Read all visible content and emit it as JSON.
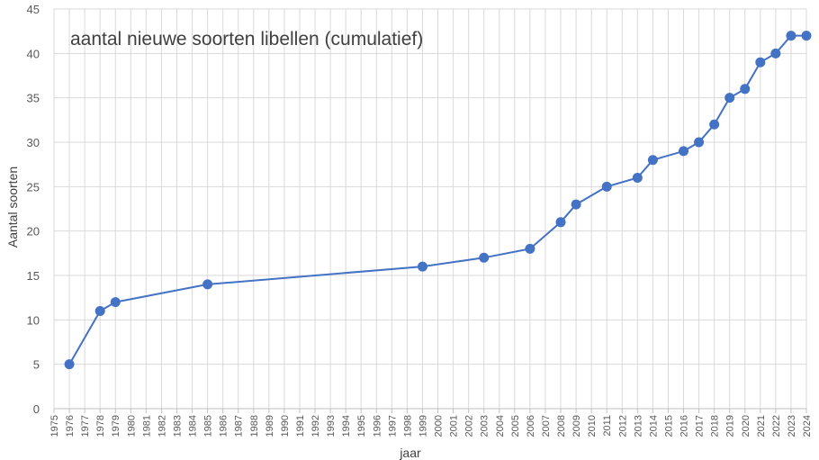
{
  "chart_data": {
    "type": "line",
    "title": "aantal nieuwe soorten libellen (cumulatief)",
    "xlabel": "jaar",
    "ylabel": "Aantal soorten",
    "xlim": [
      1975,
      2024
    ],
    "ylim": [
      0,
      45
    ],
    "y_ticks": [
      0,
      5,
      10,
      15,
      20,
      25,
      30,
      35,
      40,
      45
    ],
    "x_ticks": [
      1975,
      1976,
      1977,
      1978,
      1979,
      1980,
      1981,
      1982,
      1983,
      1984,
      1985,
      1986,
      1987,
      1988,
      1989,
      1990,
      1991,
      1992,
      1993,
      1994,
      1995,
      1996,
      1997,
      1998,
      1999,
      2000,
      2001,
      2002,
      2003,
      2004,
      2005,
      2006,
      2007,
      2008,
      2009,
      2010,
      2011,
      2012,
      2013,
      2014,
      2015,
      2016,
      2017,
      2018,
      2019,
      2020,
      2021,
      2022,
      2023,
      2024
    ],
    "grid": true,
    "series": [
      {
        "color": "#4472c4",
        "x": [
          1976,
          1978,
          1979,
          1985,
          1999,
          2003,
          2006,
          2008,
          2009,
          2011,
          2013,
          2014,
          2016,
          2017,
          2018,
          2019,
          2020,
          2021,
          2022,
          2023,
          2024
        ],
        "y": [
          5,
          11,
          12,
          14,
          16,
          17,
          18,
          21,
          23,
          25,
          26,
          28,
          29,
          30,
          32,
          35,
          36,
          39,
          40,
          42,
          42
        ]
      }
    ]
  }
}
